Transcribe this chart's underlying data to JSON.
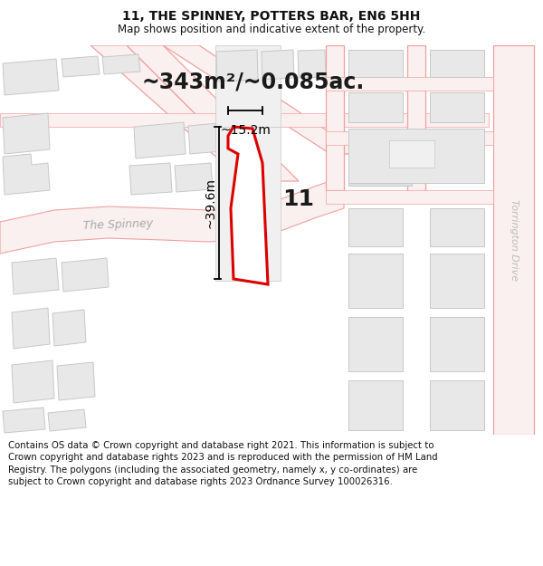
{
  "title_line1": "11, THE SPINNEY, POTTERS BAR, EN6 5HH",
  "title_line2": "Map shows position and indicative extent of the property.",
  "area_text": "~343m²/~0.085ac.",
  "property_number": "11",
  "dim_vertical": "~39.6m",
  "dim_horizontal": "~15.2m",
  "road_label_left": "The Spinney",
  "road_label_right": "Torrington Drive",
  "footer_text": "Contains OS data © Crown copyright and database right 2021. This information is subject to Crown copyright and database rights 2023 and is reproduced with the permission of HM Land Registry. The polygons (including the associated geometry, namely x, y co-ordinates) are subject to Crown copyright and database rights 2023 Ordnance Survey 100026316.",
  "bg_color": "#ffffff",
  "map_bg": "#ffffff",
  "street_color": "#f0a0a0",
  "building_fill": "#e8e8e8",
  "building_stroke": "#c8c8c8",
  "property_color": "#dd0000",
  "property_fill": "#ffffff",
  "dim_color": "#111111",
  "title_color": "#111111",
  "footer_color": "#111111",
  "road_label_color": "#aaaaaa",
  "torr_label_color": "#bbbbbb"
}
